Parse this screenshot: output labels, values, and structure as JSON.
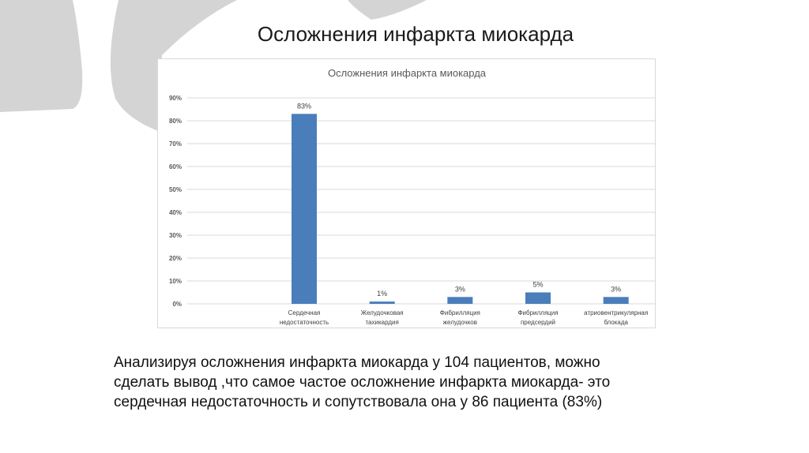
{
  "slide": {
    "title": "Осложнения инфаркта миокарда",
    "body_lines": [
      "Анализируя осложнения инфаркта миокарда у 104 пациентов, можно",
      "сделать вывод ,что самое частое осложнение инфаркта миокарда- это",
      "сердечная недостаточность и сопутствовала она у 86 пациента (83%)"
    ]
  },
  "chart_data": {
    "type": "bar",
    "title": "Осложнения инфаркта миокарда",
    "categories": [
      [
        "Сердечная",
        "недостаточность"
      ],
      [
        "Желудочковая",
        "тахикардия"
      ],
      [
        "Фибрилляция",
        "желудочков"
      ],
      [
        "Фибрилляция",
        "предсердий"
      ],
      [
        "атриовентрикулярная",
        "блокада"
      ]
    ],
    "values": [
      83,
      1,
      3,
      5,
      3
    ],
    "data_labels": [
      "83%",
      "1%",
      "3%",
      "5%",
      "3%"
    ],
    "ylim": [
      0,
      90
    ],
    "yticks": [
      0,
      10,
      20,
      30,
      40,
      50,
      60,
      70,
      80,
      90
    ],
    "ytick_labels": [
      "0%",
      "10%",
      "20%",
      "30%",
      "40%",
      "50%",
      "60%",
      "70%",
      "80%",
      "90%"
    ],
    "grid": true,
    "bar_color": "#4a7ebb",
    "gridline_color": "#d9d9d9"
  }
}
